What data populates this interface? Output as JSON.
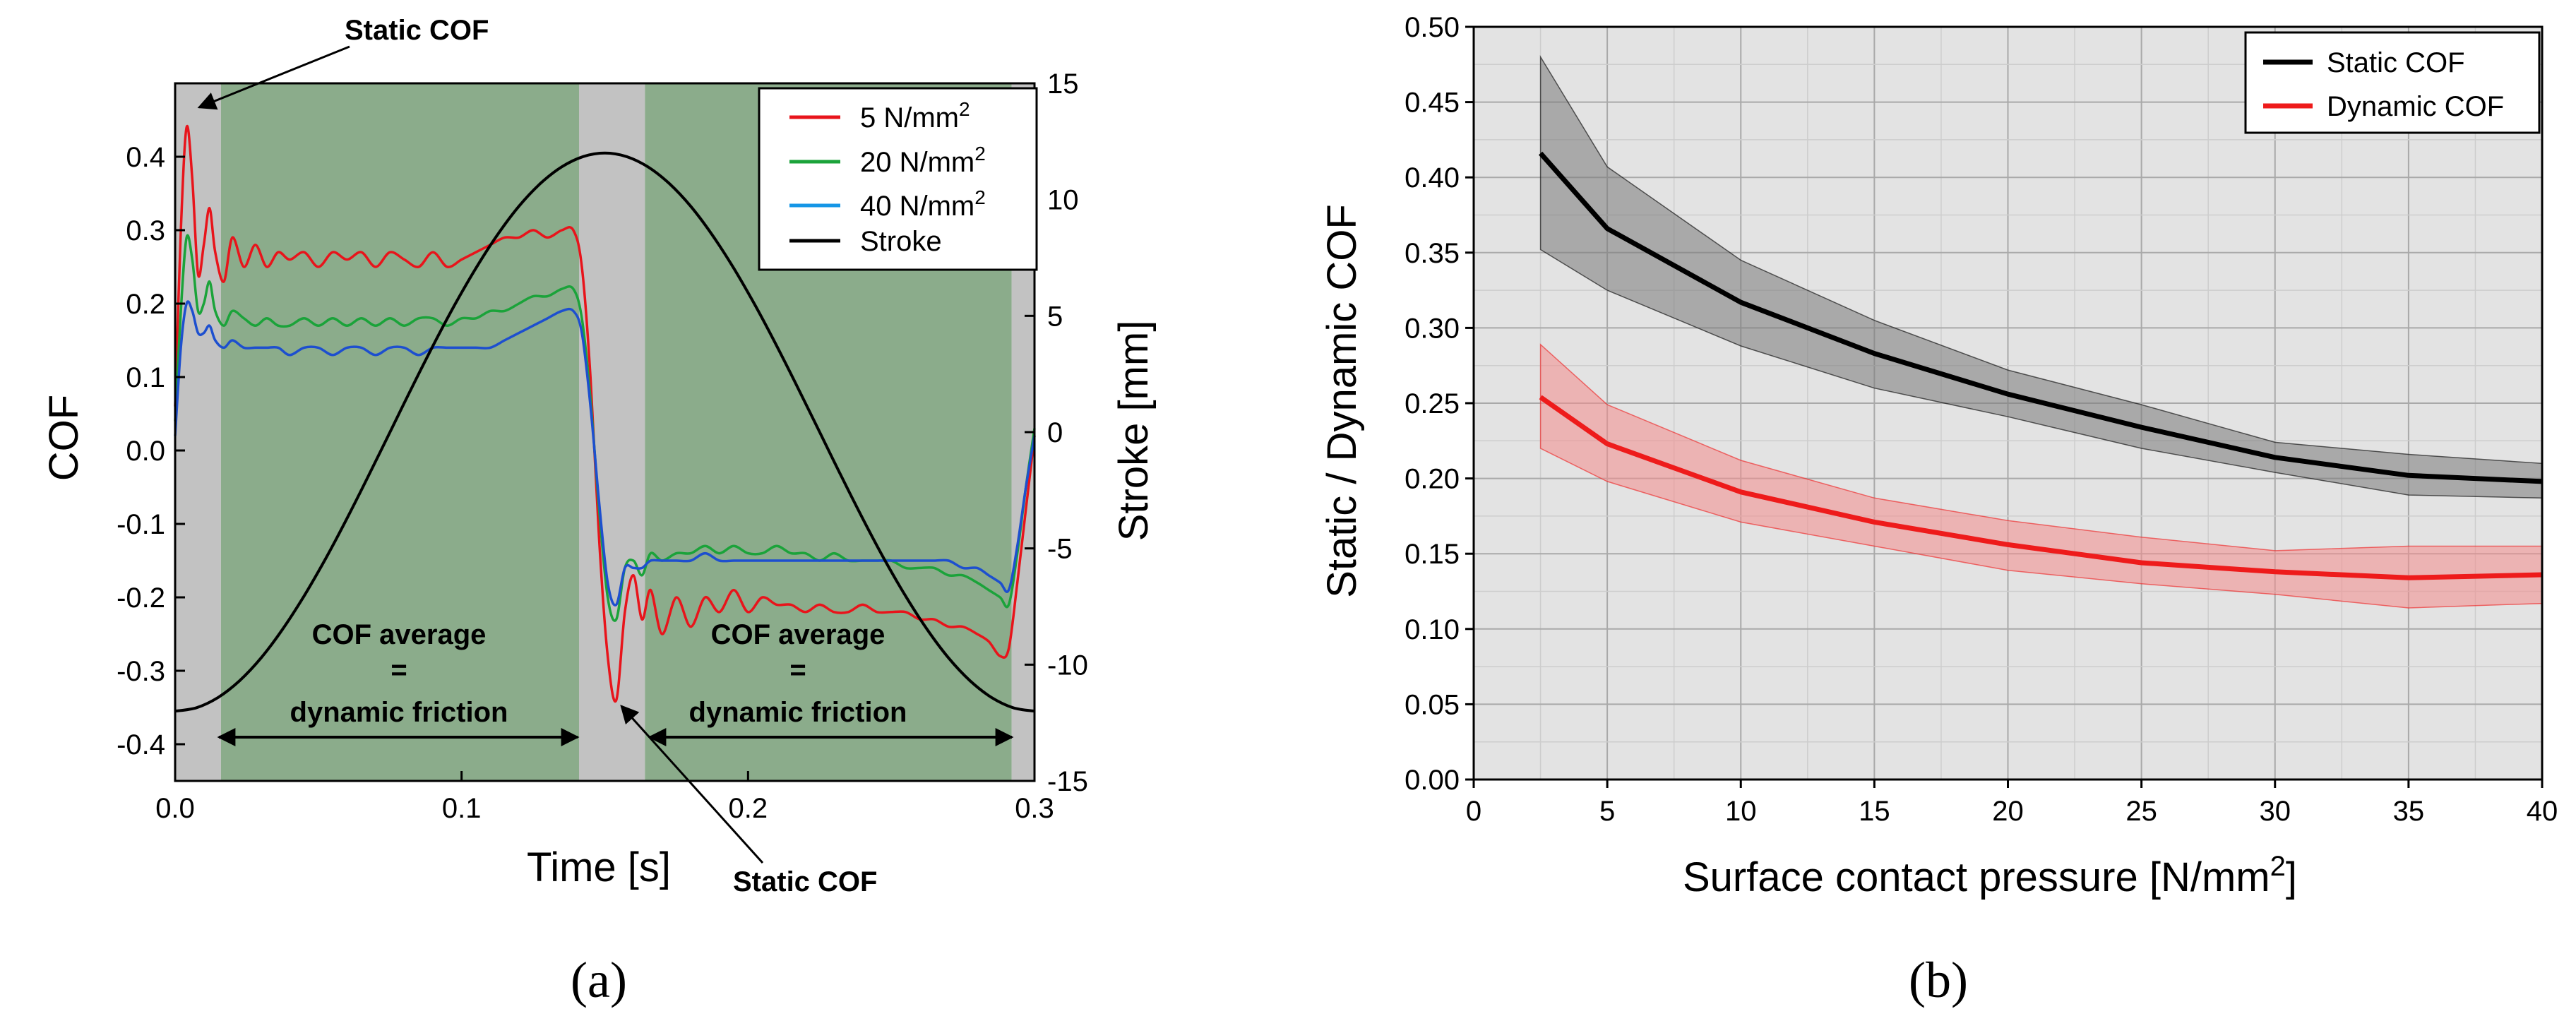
{
  "panel_labels": {
    "a": "(a)",
    "b": "(b)"
  },
  "chart_data": [
    {
      "id": "a",
      "type": "line",
      "xlabel": "Time [s]",
      "ylabel": "COF",
      "y2label": "Stroke [mm]",
      "xlim": [
        0.0,
        0.3
      ],
      "ylim": [
        -0.45,
        0.5
      ],
      "y2lim": [
        -15,
        15
      ],
      "xticks": [
        0.0,
        0.1,
        0.2,
        0.3
      ],
      "xtick_labels": [
        "0.0",
        "0.1",
        "0.2",
        "0.3"
      ],
      "yticks": [
        -0.4,
        -0.3,
        -0.2,
        -0.1,
        0.0,
        0.1,
        0.2,
        0.3,
        0.4
      ],
      "ytick_labels": [
        "-0.4",
        "-0.3",
        "-0.2",
        "-0.1",
        "0.0",
        "0.1",
        "0.2",
        "0.3",
        "0.4"
      ],
      "y2ticks": [
        -15,
        -10,
        -5,
        0,
        5,
        10,
        15
      ],
      "y2tick_labels": [
        "-15",
        "-10",
        "-5",
        "0",
        "5",
        "10",
        "15"
      ],
      "grid": false,
      "legend_position": "top-right",
      "bands": [
        {
          "kind": "static",
          "x0": 0.0,
          "x1": 0.016,
          "color": "#c2c2c2"
        },
        {
          "kind": "dynamic",
          "x0": 0.016,
          "x1": 0.141,
          "color": "#8bac8b"
        },
        {
          "kind": "static",
          "x0": 0.141,
          "x1": 0.164,
          "color": "#c2c2c2"
        },
        {
          "kind": "dynamic",
          "x0": 0.164,
          "x1": 0.292,
          "color": "#8bac8b"
        },
        {
          "kind": "static",
          "x0": 0.292,
          "x1": 0.3,
          "color": "#c2c2c2"
        }
      ],
      "series": [
        {
          "name": "5 N/mm²",
          "name_base": "5 N/mm",
          "name_sup": "2",
          "color": "#e8141b",
          "axis": "left",
          "x": [
            0,
            0.002,
            0.004,
            0.006,
            0.008,
            0.01,
            0.012,
            0.014,
            0.017,
            0.02,
            0.024,
            0.028,
            0.032,
            0.036,
            0.04,
            0.045,
            0.05,
            0.055,
            0.06,
            0.065,
            0.07,
            0.075,
            0.08,
            0.085,
            0.09,
            0.095,
            0.1,
            0.105,
            0.11,
            0.115,
            0.12,
            0.125,
            0.13,
            0.135,
            0.139,
            0.142,
            0.145,
            0.148,
            0.151,
            0.154,
            0.157,
            0.16,
            0.163,
            0.166,
            0.17,
            0.175,
            0.18,
            0.185,
            0.19,
            0.195,
            0.2,
            0.205,
            0.21,
            0.215,
            0.22,
            0.225,
            0.23,
            0.235,
            0.24,
            0.245,
            0.25,
            0.255,
            0.26,
            0.265,
            0.27,
            0.275,
            0.28,
            0.284,
            0.288,
            0.291,
            0.294,
            0.297,
            0.3
          ],
          "y": [
            0.06,
            0.3,
            0.44,
            0.37,
            0.24,
            0.28,
            0.33,
            0.27,
            0.23,
            0.29,
            0.25,
            0.28,
            0.25,
            0.27,
            0.26,
            0.27,
            0.25,
            0.27,
            0.26,
            0.27,
            0.25,
            0.27,
            0.26,
            0.25,
            0.27,
            0.25,
            0.26,
            0.27,
            0.28,
            0.29,
            0.29,
            0.3,
            0.29,
            0.3,
            0.3,
            0.25,
            0.1,
            -0.12,
            -0.28,
            -0.34,
            -0.22,
            -0.17,
            -0.23,
            -0.19,
            -0.25,
            -0.2,
            -0.24,
            -0.2,
            -0.22,
            -0.19,
            -0.22,
            -0.2,
            -0.21,
            -0.21,
            -0.22,
            -0.21,
            -0.22,
            -0.22,
            -0.21,
            -0.22,
            -0.22,
            -0.22,
            -0.23,
            -0.23,
            -0.24,
            -0.24,
            -0.25,
            -0.26,
            -0.28,
            -0.27,
            -0.18,
            -0.08,
            0.02
          ]
        },
        {
          "name": "20 N/mm²",
          "name_base": "20 N/mm",
          "name_sup": "2",
          "color": "#1ba33a",
          "axis": "left",
          "x": [
            0,
            0.002,
            0.004,
            0.006,
            0.008,
            0.01,
            0.012,
            0.014,
            0.017,
            0.02,
            0.024,
            0.028,
            0.032,
            0.036,
            0.04,
            0.045,
            0.05,
            0.055,
            0.06,
            0.065,
            0.07,
            0.075,
            0.08,
            0.085,
            0.09,
            0.095,
            0.1,
            0.105,
            0.11,
            0.115,
            0.12,
            0.125,
            0.13,
            0.135,
            0.139,
            0.142,
            0.145,
            0.148,
            0.151,
            0.154,
            0.157,
            0.16,
            0.163,
            0.166,
            0.17,
            0.175,
            0.18,
            0.185,
            0.19,
            0.195,
            0.2,
            0.205,
            0.21,
            0.215,
            0.22,
            0.225,
            0.23,
            0.235,
            0.24,
            0.245,
            0.25,
            0.255,
            0.26,
            0.265,
            0.27,
            0.275,
            0.28,
            0.284,
            0.288,
            0.291,
            0.294,
            0.297,
            0.3
          ],
          "y": [
            0.04,
            0.19,
            0.29,
            0.26,
            0.19,
            0.2,
            0.23,
            0.19,
            0.17,
            0.19,
            0.18,
            0.17,
            0.18,
            0.17,
            0.17,
            0.18,
            0.17,
            0.18,
            0.17,
            0.18,
            0.17,
            0.18,
            0.17,
            0.18,
            0.18,
            0.17,
            0.18,
            0.18,
            0.19,
            0.19,
            0.2,
            0.21,
            0.21,
            0.22,
            0.22,
            0.18,
            0.07,
            -0.08,
            -0.2,
            -0.23,
            -0.16,
            -0.15,
            -0.17,
            -0.14,
            -0.15,
            -0.14,
            -0.14,
            -0.13,
            -0.14,
            -0.13,
            -0.14,
            -0.14,
            -0.13,
            -0.14,
            -0.14,
            -0.15,
            -0.14,
            -0.15,
            -0.15,
            -0.15,
            -0.15,
            -0.16,
            -0.16,
            -0.16,
            -0.17,
            -0.17,
            -0.18,
            -0.19,
            -0.2,
            -0.21,
            -0.14,
            -0.05,
            0.03
          ]
        },
        {
          "name": "40 N/mm²",
          "name_base": "40 N/mm",
          "name_sup": "2",
          "color": "#1d4fcf",
          "axis": "left",
          "x": [
            0,
            0.002,
            0.004,
            0.006,
            0.008,
            0.01,
            0.012,
            0.014,
            0.017,
            0.02,
            0.024,
            0.028,
            0.032,
            0.036,
            0.04,
            0.045,
            0.05,
            0.055,
            0.06,
            0.065,
            0.07,
            0.075,
            0.08,
            0.085,
            0.09,
            0.095,
            0.1,
            0.105,
            0.11,
            0.115,
            0.12,
            0.125,
            0.13,
            0.135,
            0.139,
            0.142,
            0.145,
            0.148,
            0.151,
            0.154,
            0.157,
            0.16,
            0.163,
            0.166,
            0.17,
            0.175,
            0.18,
            0.185,
            0.19,
            0.195,
            0.2,
            0.205,
            0.21,
            0.215,
            0.22,
            0.225,
            0.23,
            0.235,
            0.24,
            0.245,
            0.25,
            0.255,
            0.26,
            0.265,
            0.27,
            0.275,
            0.28,
            0.284,
            0.288,
            0.291,
            0.294,
            0.297,
            0.3
          ],
          "y": [
            0.02,
            0.14,
            0.2,
            0.19,
            0.16,
            0.16,
            0.17,
            0.15,
            0.14,
            0.15,
            0.14,
            0.14,
            0.14,
            0.14,
            0.13,
            0.14,
            0.14,
            0.13,
            0.14,
            0.14,
            0.13,
            0.14,
            0.14,
            0.13,
            0.14,
            0.14,
            0.14,
            0.14,
            0.14,
            0.15,
            0.16,
            0.17,
            0.18,
            0.19,
            0.19,
            0.16,
            0.06,
            -0.07,
            -0.18,
            -0.21,
            -0.16,
            -0.16,
            -0.16,
            -0.15,
            -0.15,
            -0.15,
            -0.15,
            -0.14,
            -0.15,
            -0.15,
            -0.15,
            -0.15,
            -0.15,
            -0.15,
            -0.15,
            -0.15,
            -0.15,
            -0.15,
            -0.15,
            -0.15,
            -0.15,
            -0.15,
            -0.15,
            -0.15,
            -0.15,
            -0.16,
            -0.16,
            -0.17,
            -0.18,
            -0.19,
            -0.13,
            -0.05,
            0.02
          ]
        },
        {
          "name": "Stroke",
          "color": "#000000",
          "axis": "right",
          "x": [
            0,
            0.0075,
            0.015,
            0.0225,
            0.03,
            0.0375,
            0.045,
            0.0525,
            0.06,
            0.0675,
            0.075,
            0.0825,
            0.09,
            0.0975,
            0.105,
            0.1125,
            0.12,
            0.1275,
            0.135,
            0.1425,
            0.15,
            0.1575,
            0.165,
            0.1725,
            0.18,
            0.1875,
            0.195,
            0.2025,
            0.21,
            0.2175,
            0.225,
            0.2325,
            0.24,
            0.2475,
            0.255,
            0.2625,
            0.27,
            0.2775,
            0.285,
            0.2925,
            0.3
          ],
          "y": [
            -12.0,
            -11.85,
            -11.41,
            -10.69,
            -9.71,
            -8.48,
            -7.05,
            -5.45,
            -3.71,
            -1.88,
            0.0,
            1.88,
            3.71,
            5.45,
            7.05,
            8.48,
            9.71,
            10.69,
            11.41,
            11.85,
            12.0,
            11.85,
            11.41,
            10.69,
            9.71,
            8.48,
            7.05,
            5.45,
            3.71,
            1.88,
            0.0,
            -1.88,
            -3.71,
            -5.45,
            -7.05,
            -8.48,
            -9.71,
            -10.69,
            -11.41,
            -11.85,
            -12.0
          ]
        }
      ],
      "annotations": [
        {
          "id": "static-top",
          "lines": [
            "Static COF"
          ]
        },
        {
          "id": "static-bottom",
          "lines": [
            "Static COF"
          ]
        },
        {
          "id": "avg-left",
          "lines": [
            "COF average",
            "=",
            "dynamic friction"
          ]
        },
        {
          "id": "avg-right",
          "lines": [
            "COF average",
            "=",
            "dynamic friction"
          ]
        }
      ]
    },
    {
      "id": "b",
      "type": "line",
      "xlabel": "Surface contact pressure [N/mm²]",
      "xlabel_base": "Surface contact pressure [N/mm",
      "xlabel_sup": "2",
      "xlabel_tail": "]",
      "ylabel": "Static / Dynamic COF",
      "xlim": [
        0,
        40
      ],
      "ylim": [
        0.0,
        0.5
      ],
      "xticks": [
        0,
        5,
        10,
        15,
        20,
        25,
        30,
        35,
        40
      ],
      "xtick_labels": [
        "0",
        "5",
        "10",
        "15",
        "20",
        "25",
        "30",
        "35",
        "40"
      ],
      "yticks": [
        0.0,
        0.05,
        0.1,
        0.15,
        0.2,
        0.25,
        0.3,
        0.35,
        0.4,
        0.45,
        0.5
      ],
      "ytick_labels": [
        "0.00",
        "0.05",
        "0.10",
        "0.15",
        "0.20",
        "0.25",
        "0.30",
        "0.35",
        "0.40",
        "0.45",
        "0.50"
      ],
      "grid": true,
      "legend_position": "top-right",
      "series": [
        {
          "name": "Static COF",
          "color": "#000000",
          "band_color": "#7a7a7a",
          "x": [
            2.5,
            5,
            10,
            15,
            20,
            25,
            30,
            35,
            40
          ],
          "y": [
            0.416,
            0.366,
            0.317,
            0.283,
            0.256,
            0.234,
            0.214,
            0.202,
            0.198
          ],
          "upper": [
            0.48,
            0.407,
            0.345,
            0.305,
            0.272,
            0.249,
            0.224,
            0.216,
            0.21
          ],
          "lower": [
            0.352,
            0.325,
            0.288,
            0.26,
            0.241,
            0.22,
            0.204,
            0.189,
            0.187
          ]
        },
        {
          "name": "Dynamic COF",
          "color": "#ee1b1b",
          "band_color": "#f48c8c",
          "x": [
            2.5,
            5,
            10,
            15,
            20,
            25,
            30,
            35,
            40
          ],
          "y": [
            0.254,
            0.223,
            0.191,
            0.171,
            0.156,
            0.144,
            0.138,
            0.134,
            0.136
          ],
          "upper": [
            0.289,
            0.249,
            0.212,
            0.187,
            0.172,
            0.161,
            0.152,
            0.155,
            0.155
          ],
          "lower": [
            0.22,
            0.198,
            0.171,
            0.155,
            0.139,
            0.13,
            0.123,
            0.114,
            0.117
          ]
        }
      ]
    }
  ]
}
